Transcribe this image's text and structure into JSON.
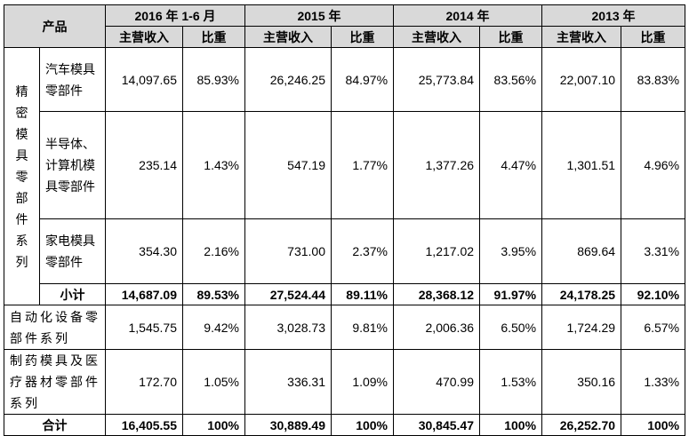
{
  "header": {
    "product": "产品",
    "periods": [
      "2016 年 1-6 月",
      "2015 年",
      "2014 年",
      "2013 年"
    ],
    "revenue": "主营收入",
    "share": "比重"
  },
  "group": {
    "label": "精密模具零部件系列",
    "rows": [
      {
        "name": "汽车模具零部件",
        "values": [
          "14,097.65",
          "85.93%",
          "26,246.25",
          "84.97%",
          "25,773.84",
          "83.56%",
          "22,007.10",
          "83.83%"
        ]
      },
      {
        "name": "半导体、计算机模具零部件",
        "values": [
          "235.14",
          "1.43%",
          "547.19",
          "1.77%",
          "1,377.26",
          "4.47%",
          "1,301.51",
          "4.96%"
        ]
      },
      {
        "name": "家电模具零部件",
        "values": [
          "354.30",
          "2.16%",
          "731.00",
          "2.37%",
          "1,217.02",
          "3.95%",
          "869.64",
          "3.31%"
        ]
      }
    ],
    "subtotal": {
      "name": "小计",
      "values": [
        "14,687.09",
        "89.53%",
        "27,524.44",
        "89.11%",
        "28,368.12",
        "91.97%",
        "24,178.25",
        "92.10%"
      ]
    }
  },
  "other_rows": [
    {
      "name": "自动化设备零部件系列",
      "values": [
        "1,545.75",
        "9.42%",
        "3,028.73",
        "9.81%",
        "2,006.36",
        "6.50%",
        "1,724.29",
        "6.57%"
      ]
    },
    {
      "name": "制药模具及医疗器材零部件系列",
      "values": [
        "172.70",
        "1.05%",
        "336.31",
        "1.09%",
        "470.99",
        "1.53%",
        "350.16",
        "1.33%"
      ]
    }
  ],
  "total": {
    "name": "合计",
    "values": [
      "16,405.55",
      "100%",
      "30,889.49",
      "100%",
      "30,845.47",
      "100%",
      "26,252.70",
      "100%"
    ]
  }
}
